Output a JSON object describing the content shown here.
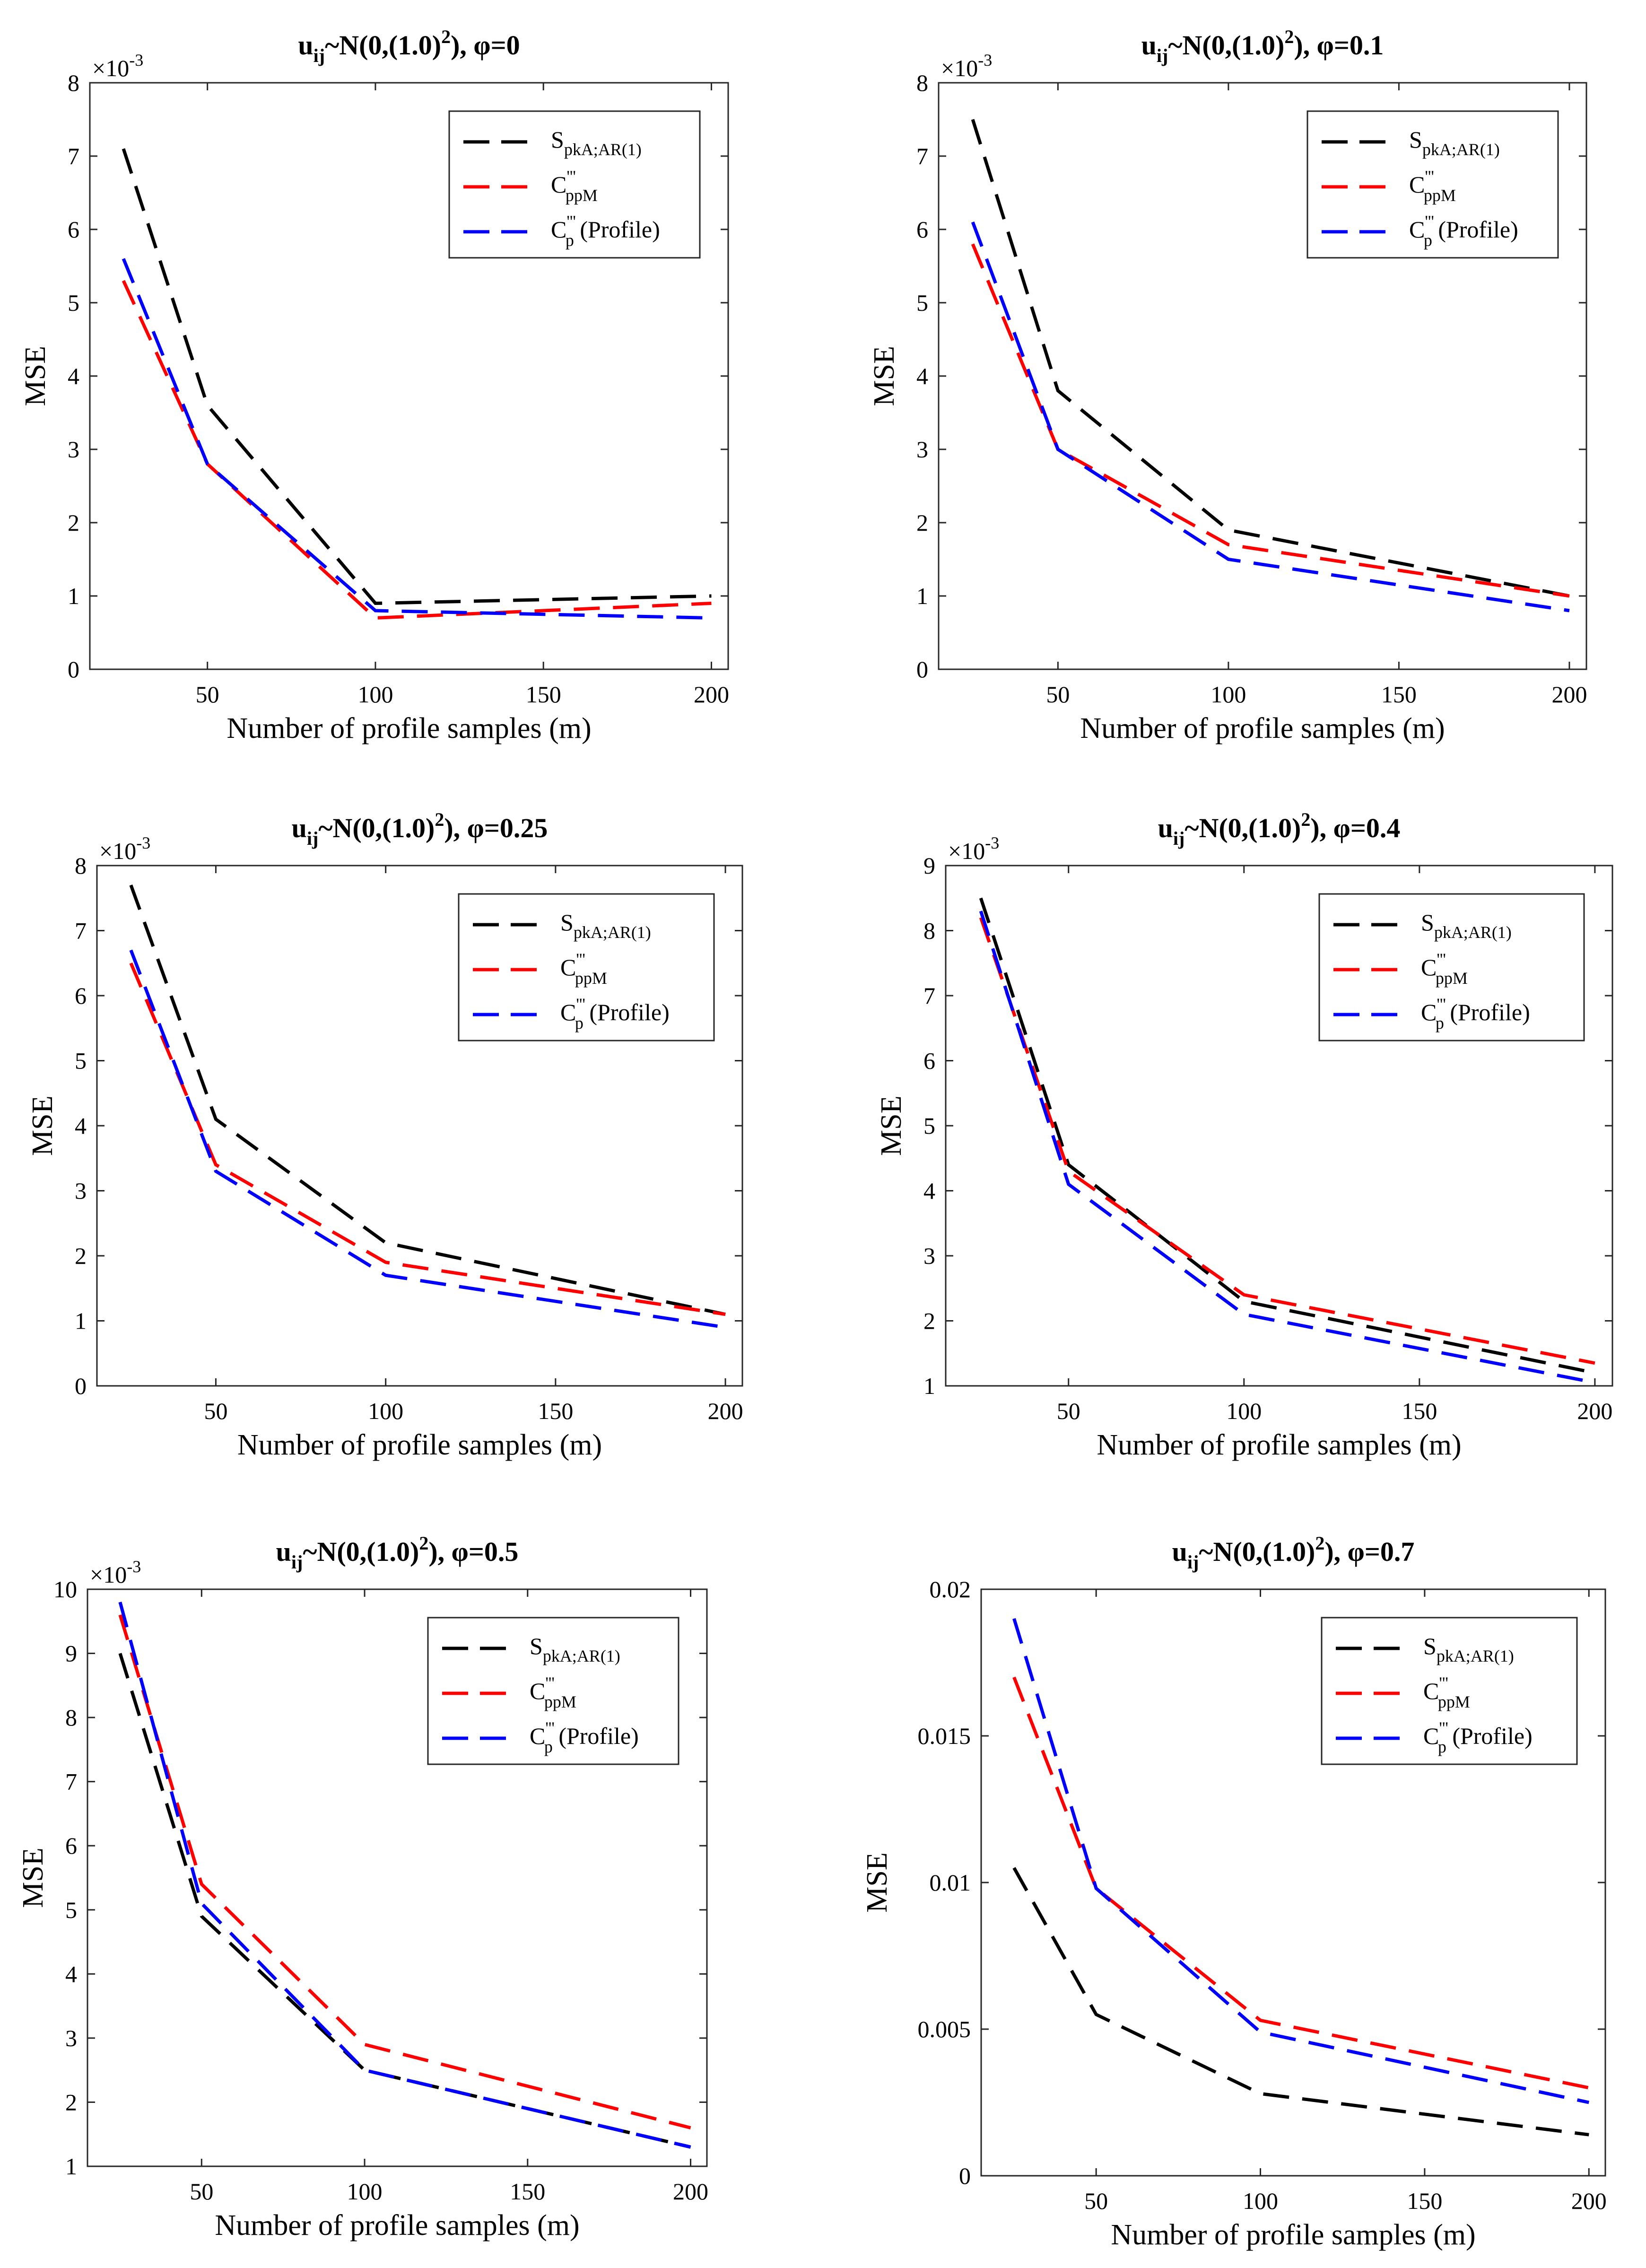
{
  "chart_data": [
    {
      "type": "line",
      "title": "u_ij~N(0,(1.0)^2), φ=0",
      "title_parts": {
        "base": "u",
        "sub": "ij",
        "mid": "~N(0,(1.0)",
        "sup": "2",
        "tail": "), φ=0"
      },
      "xlabel": "Number of profile samples (m)",
      "ylabel": "MSE",
      "x": [
        25,
        50,
        100,
        200
      ],
      "xlim": [
        15,
        205
      ],
      "ylim": [
        0,
        8
      ],
      "x_ticks": [
        50,
        100,
        150,
        200
      ],
      "y_ticks": [
        0,
        1,
        2,
        3,
        4,
        5,
        6,
        7,
        8
      ],
      "y_tick_labels": [
        "0",
        "1",
        "2",
        "3",
        "4",
        "5",
        "6",
        "7",
        "8"
      ],
      "y_multiplier": "×10^-3",
      "legend_position": "top-right",
      "series": [
        {
          "name": "S_pkA;AR(1)",
          "color": "#000000",
          "values": [
            7.1,
            3.6,
            0.9,
            1.0
          ]
        },
        {
          "name": "C'''_ppM",
          "color": "#ff0000",
          "values": [
            5.3,
            2.8,
            0.7,
            0.9
          ]
        },
        {
          "name": "C'''_p (Profile)",
          "color": "#0000ff",
          "values": [
            5.6,
            2.8,
            0.8,
            0.7
          ]
        }
      ]
    },
    {
      "type": "line",
      "title": "u_ij~N(0,(1.0)^2), φ=0.1",
      "title_parts": {
        "base": "u",
        "sub": "ij",
        "mid": "~N(0,(1.0)",
        "sup": "2",
        "tail": "), φ=0.1"
      },
      "xlabel": "Number of profile samples (m)",
      "ylabel": "MSE",
      "x": [
        25,
        50,
        100,
        200
      ],
      "xlim": [
        15,
        205
      ],
      "ylim": [
        0,
        8
      ],
      "x_ticks": [
        50,
        100,
        150,
        200
      ],
      "y_ticks": [
        0,
        1,
        2,
        3,
        4,
        5,
        6,
        7,
        8
      ],
      "y_tick_labels": [
        "0",
        "1",
        "2",
        "3",
        "4",
        "5",
        "6",
        "7",
        "8"
      ],
      "y_multiplier": "×10^-3",
      "legend_position": "top-right",
      "series": [
        {
          "name": "S_pkA;AR(1)",
          "color": "#000000",
          "values": [
            7.5,
            3.8,
            1.9,
            1.0
          ]
        },
        {
          "name": "C'''_ppM",
          "color": "#ff0000",
          "values": [
            5.8,
            3.0,
            1.7,
            1.0
          ]
        },
        {
          "name": "C'''_p (Profile)",
          "color": "#0000ff",
          "values": [
            6.1,
            3.0,
            1.5,
            0.8
          ]
        }
      ]
    },
    {
      "type": "line",
      "title": "u_ij~N(0,(1.0)^2), φ=0.25",
      "title_parts": {
        "base": "u",
        "sub": "ij",
        "mid": "~N(0,(1.0)",
        "sup": "2",
        "tail": "), φ=0.25"
      },
      "xlabel": "Number of profile samples (m)",
      "ylabel": "MSE",
      "x": [
        25,
        50,
        100,
        200
      ],
      "xlim": [
        15,
        205
      ],
      "ylim": [
        0,
        8
      ],
      "x_ticks": [
        50,
        100,
        150,
        200
      ],
      "y_ticks": [
        0,
        1,
        2,
        3,
        4,
        5,
        6,
        7,
        8
      ],
      "y_tick_labels": [
        "0",
        "1",
        "2",
        "3",
        "4",
        "5",
        "6",
        "7",
        "8"
      ],
      "y_multiplier": "×10^-3",
      "legend_position": "top-right",
      "series": [
        {
          "name": "S_pkA;AR(1)",
          "color": "#000000",
          "values": [
            7.7,
            4.1,
            2.2,
            1.1
          ]
        },
        {
          "name": "C'''_ppM",
          "color": "#ff0000",
          "values": [
            6.5,
            3.4,
            1.9,
            1.1
          ]
        },
        {
          "name": "C'''_p (Profile)",
          "color": "#0000ff",
          "values": [
            6.7,
            3.3,
            1.7,
            0.9
          ]
        }
      ]
    },
    {
      "type": "line",
      "title": "u_ij~N(0,(1.0)^2), φ=0.4",
      "title_parts": {
        "base": "u",
        "sub": "ij",
        "mid": "~N(0,(1.0)",
        "sup": "2",
        "tail": "), φ=0.4"
      },
      "xlabel": "Number of profile samples (m)",
      "ylabel": "MSE",
      "x": [
        25,
        50,
        100,
        200
      ],
      "xlim": [
        15,
        205
      ],
      "ylim": [
        1,
        9
      ],
      "x_ticks": [
        50,
        100,
        150,
        200
      ],
      "y_ticks": [
        1,
        2,
        3,
        4,
        5,
        6,
        7,
        8,
        9
      ],
      "y_tick_labels": [
        "1",
        "2",
        "3",
        "4",
        "5",
        "6",
        "7",
        "8",
        "9"
      ],
      "y_multiplier": "×10^-3",
      "legend_position": "top-right",
      "series": [
        {
          "name": "S_pkA;AR(1)",
          "color": "#000000",
          "values": [
            8.5,
            4.4,
            2.3,
            1.2
          ]
        },
        {
          "name": "C'''_ppM",
          "color": "#ff0000",
          "values": [
            8.2,
            4.3,
            2.4,
            1.35
          ]
        },
        {
          "name": "C'''_p (Profile)",
          "color": "#0000ff",
          "values": [
            8.3,
            4.1,
            2.1,
            1.05
          ]
        }
      ]
    },
    {
      "type": "line",
      "title": "u_ij~N(0,(1.0)^2), φ=0.5",
      "title_parts": {
        "base": "u",
        "sub": "ij",
        "mid": "~N(0,(1.0)",
        "sup": "2",
        "tail": "), φ=0.5"
      },
      "xlabel": "Number of profile samples (m)",
      "ylabel": "MSE",
      "x": [
        25,
        50,
        100,
        200
      ],
      "xlim": [
        15,
        205
      ],
      "ylim": [
        1,
        10
      ],
      "x_ticks": [
        50,
        100,
        150,
        200
      ],
      "y_ticks": [
        1,
        2,
        3,
        4,
        5,
        6,
        7,
        8,
        9,
        10
      ],
      "y_tick_labels": [
        "1",
        "2",
        "3",
        "4",
        "5",
        "6",
        "7",
        "8",
        "9",
        "10"
      ],
      "y_multiplier": "×10^-3",
      "legend_position": "top-right",
      "series": [
        {
          "name": "S_pkA;AR(1)",
          "color": "#000000",
          "values": [
            9.0,
            4.9,
            2.5,
            1.3
          ]
        },
        {
          "name": "C'''_ppM",
          "color": "#ff0000",
          "values": [
            9.6,
            5.4,
            2.9,
            1.6
          ]
        },
        {
          "name": "C'''_p (Profile)",
          "color": "#0000ff",
          "values": [
            9.8,
            5.1,
            2.5,
            1.3
          ]
        }
      ]
    },
    {
      "type": "line",
      "title": "u_ij~N(0,(1.0)^2), φ=0.7",
      "title_parts": {
        "base": "u",
        "sub": "ij",
        "mid": "~N(0,(1.0)",
        "sup": "2",
        "tail": "), φ=0.7"
      },
      "xlabel": "Number of profile samples (m)",
      "ylabel": "MSE",
      "x": [
        25,
        50,
        100,
        200
      ],
      "xlim": [
        15,
        205
      ],
      "ylim": [
        0,
        0.02
      ],
      "x_ticks": [
        50,
        100,
        150,
        200
      ],
      "y_ticks": [
        0,
        0.005,
        0.01,
        0.015,
        0.02
      ],
      "y_tick_labels": [
        "0",
        "0.005",
        "0.01",
        "0.015",
        "0.02"
      ],
      "y_multiplier": "",
      "legend_position": "top-right",
      "series": [
        {
          "name": "S_pkA;AR(1)",
          "color": "#000000",
          "values": [
            0.0105,
            0.0055,
            0.0028,
            0.0014
          ]
        },
        {
          "name": "C'''_ppM",
          "color": "#ff0000",
          "values": [
            0.017,
            0.0098,
            0.0053,
            0.003
          ]
        },
        {
          "name": "C'''_p (Profile)",
          "color": "#0000ff",
          "values": [
            0.019,
            0.0098,
            0.0049,
            0.0025
          ]
        }
      ]
    }
  ],
  "legend_labels": {
    "s": {
      "base": "S",
      "sub": "pkA;AR(1)"
    },
    "cppm": {
      "base": "C",
      "sup": "'''",
      "sub": "ppM"
    },
    "cp": {
      "base": "C",
      "sup": "'''",
      "sub": "p",
      "tail": " (Profile)"
    }
  },
  "multiplier_parts": {
    "base": "×10",
    "sup": "-3"
  }
}
